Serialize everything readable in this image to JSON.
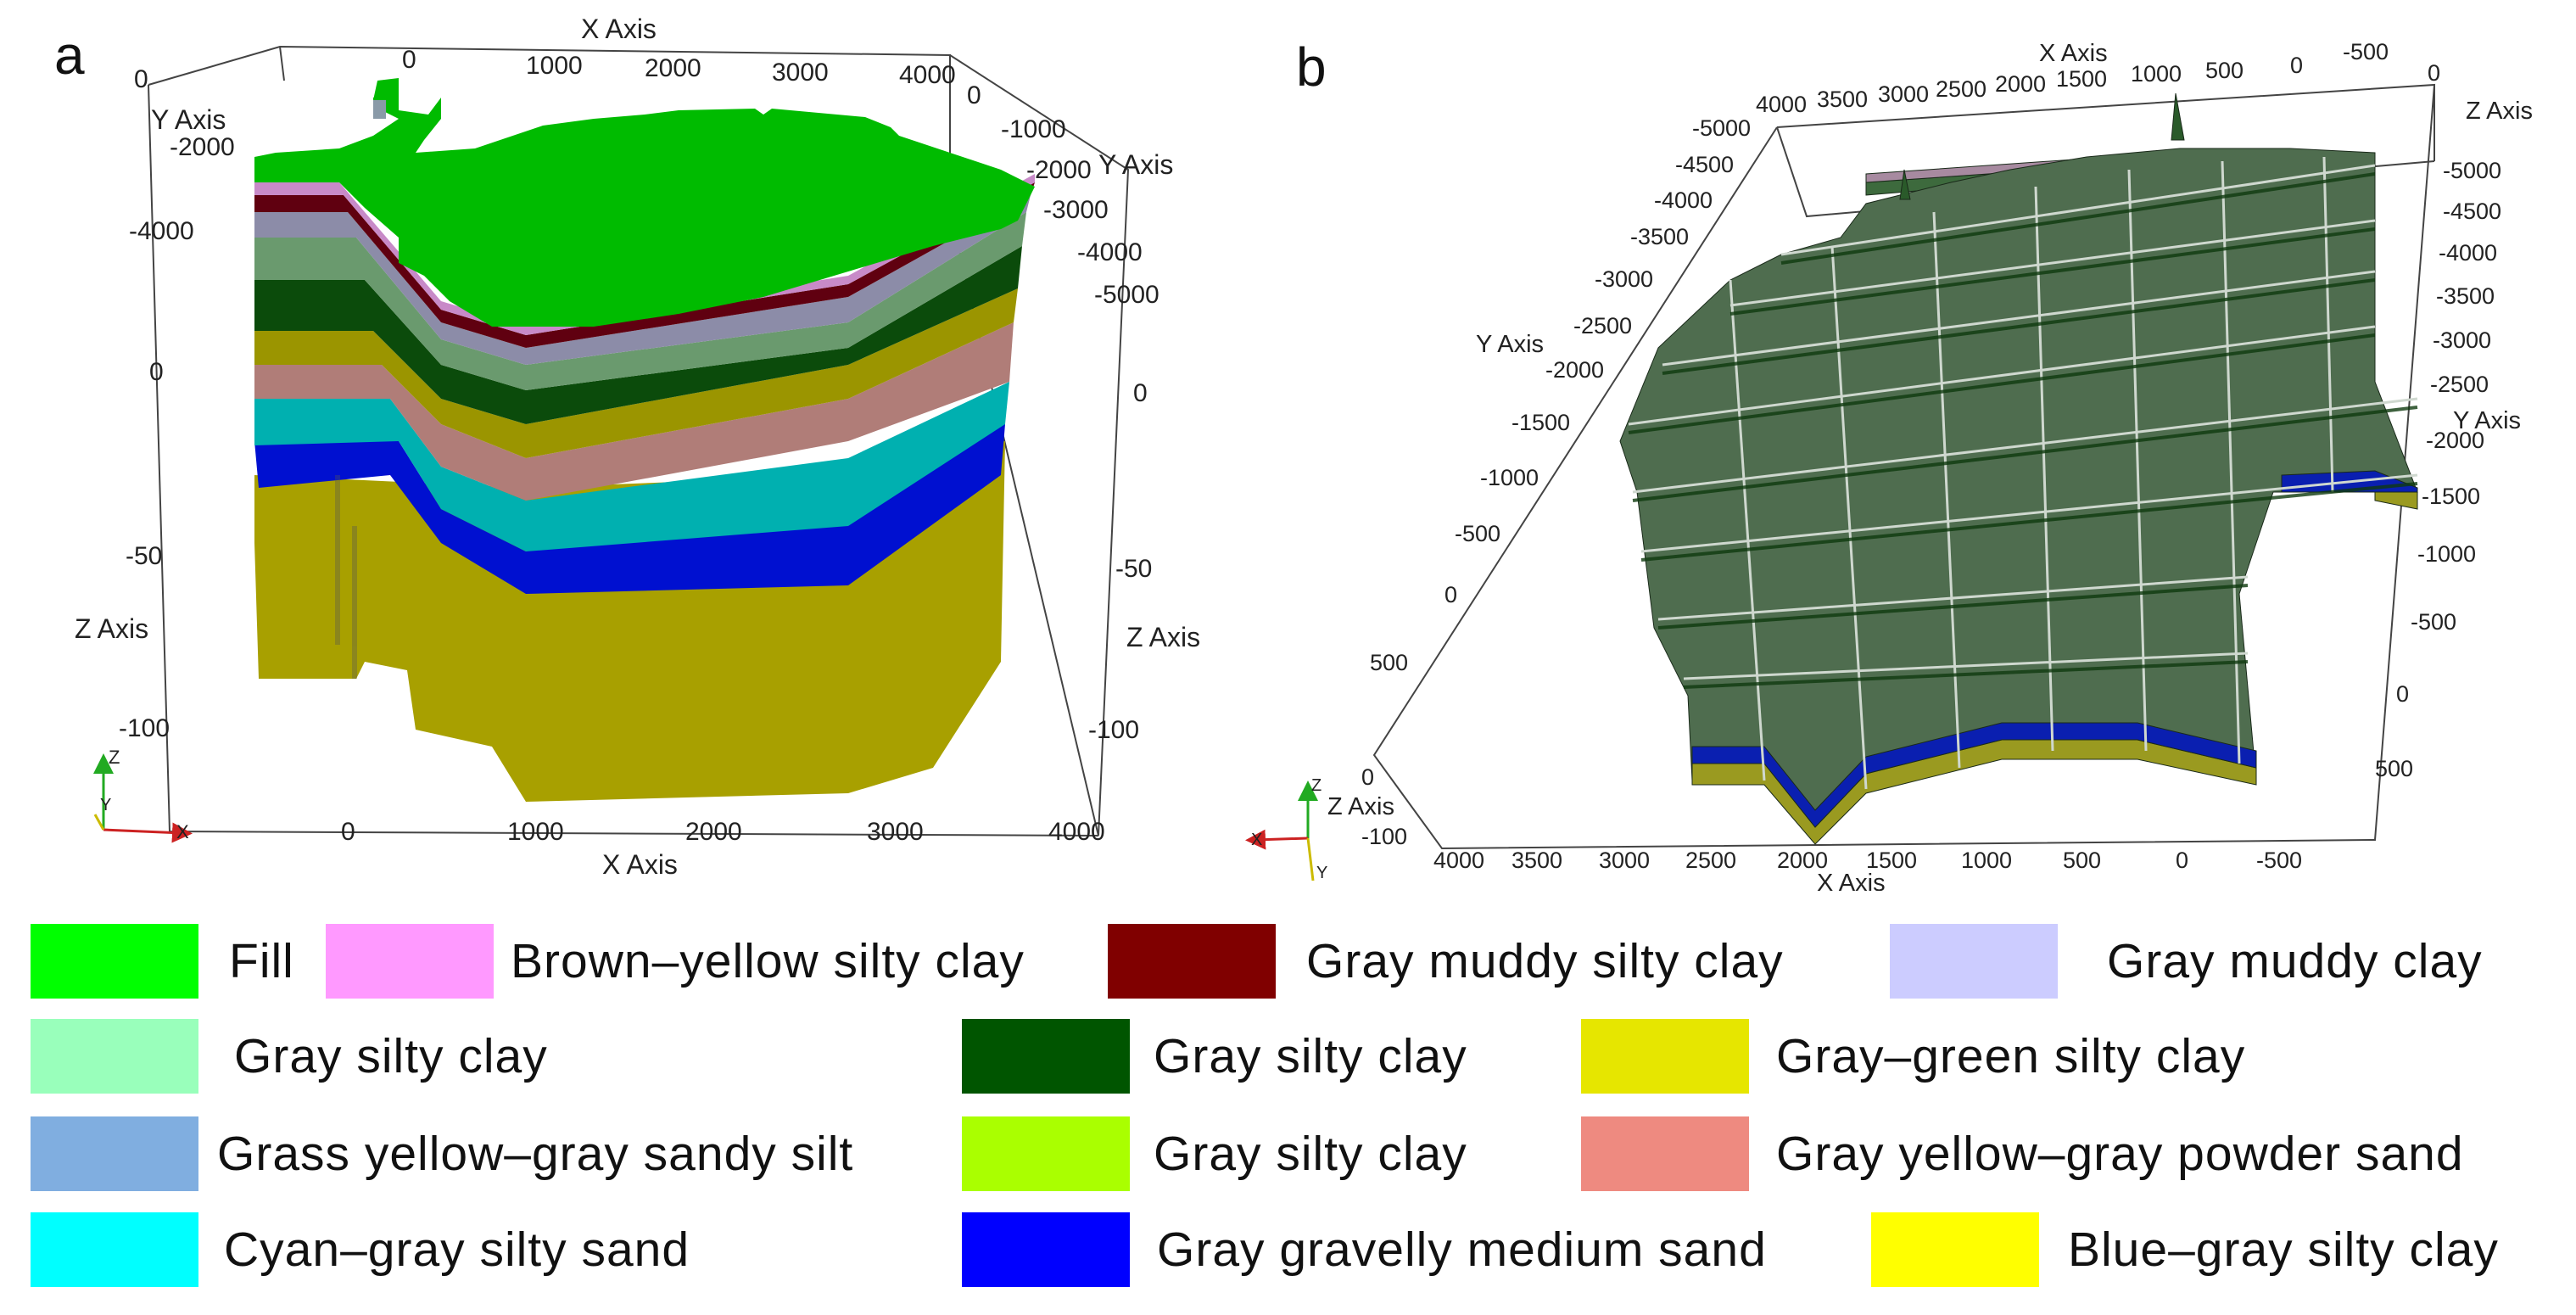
{
  "panels": {
    "a": {
      "letter": "a",
      "x_axis_title": "X Axis",
      "y_axis_title": "Y Axis",
      "z_axis_title": "Z Axis",
      "top_x_ticks": [
        "0",
        "0",
        "1000",
        "2000",
        "3000",
        "4000"
      ],
      "bottom_x_ticks": [
        "0",
        "1000",
        "2000",
        "3000",
        "4000"
      ],
      "left_y_ticks": [
        "-2000",
        "-4000"
      ],
      "right_y_ticks": [
        "0",
        "-1000",
        "-2000",
        "-3000",
        "-4000",
        "-5000"
      ],
      "left_z_ticks": [
        "0",
        "-50",
        "-100"
      ],
      "right_z_ticks": [
        "0",
        "-50",
        "-100"
      ],
      "triad": {
        "z": "Z",
        "y": "Y",
        "x": "X"
      }
    },
    "b": {
      "letter": "b",
      "x_axis_title": "X Axis",
      "y_axis_title": "Y Axis",
      "z_axis_title": "Z Axis",
      "top_x_ticks": [
        "4000",
        "3500",
        "3000",
        "2500",
        "2000",
        "1500",
        "1000",
        "500",
        "0",
        "-500"
      ],
      "bottom_x_ticks": [
        "4000",
        "3500",
        "3000",
        "2500",
        "2000",
        "1500",
        "1000",
        "500",
        "0",
        "-500"
      ],
      "left_y_ticks": [
        "-5000",
        "-4500",
        "-4000",
        "-3500",
        "-3000",
        "-2500",
        "-2000",
        "-1500",
        "-1000",
        "-500",
        "0",
        "500"
      ],
      "right_y_ticks": [
        "-5000",
        "-4500",
        "-4000",
        "-3500",
        "-3000",
        "-2500",
        "-2000",
        "-1500",
        "-1000",
        "-500",
        "0",
        "500"
      ],
      "top_z_tick": "0",
      "left_z_ticks": [
        "0",
        "-100"
      ],
      "triad": {
        "z": "Z",
        "y": "Y",
        "x": "X"
      }
    }
  },
  "legend": [
    {
      "label": "Fill",
      "color": "#00ff00"
    },
    {
      "label": "Brown–yellow silty clay",
      "color": "#ff99ff"
    },
    {
      "label": "Gray muddy silty clay",
      "color": "#800000"
    },
    {
      "label": "Gray muddy clay",
      "color": "#ccccff"
    },
    {
      "label": "Gray silty clay",
      "color": "#99ffbb"
    },
    {
      "label": "Gray silty clay",
      "color": "#005500"
    },
    {
      "label": "Gray–green silty clay",
      "color": "#e6e600"
    },
    {
      "label": "Grass yellow–gray sandy silt",
      "color": "#80aee0"
    },
    {
      "label": "Gray silty clay",
      "color": "#aaff00"
    },
    {
      "label": "Gray yellow–gray powder sand",
      "color": "#ee8a80"
    },
    {
      "label": "Cyan–gray silty sand",
      "color": "#00ffff"
    },
    {
      "label": "Gray gravelly medium sand",
      "color": "#0000ff"
    },
    {
      "label": "Blue–gray silty clay",
      "color": "#ffff00"
    }
  ]
}
